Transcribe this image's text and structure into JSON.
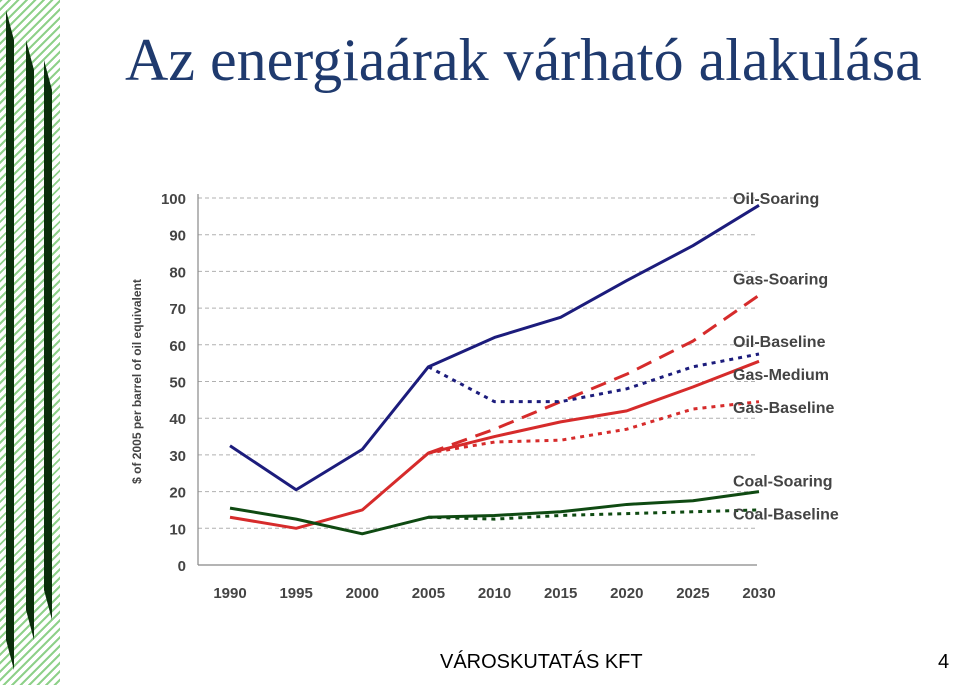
{
  "slide": {
    "title": "Az energiaárak várható alakulása",
    "footer": "VÁROSKUTATÁS KFT",
    "page_number": "4"
  },
  "colors": {
    "title": "#1f3a6e",
    "oil": "#1c1c7c",
    "gas": "#d62b2b",
    "coal": "#0f4a12",
    "grid": "#b0b0b0",
    "decoration_green": "#8fd18a",
    "decoration_dark": "#0b2d0b"
  },
  "chart_data": {
    "type": "line",
    "title": "",
    "xlabel": "",
    "ylabel": "$ of 2005 per barrel of oil equivalent",
    "ylim": [
      0,
      100
    ],
    "yticks": [
      0,
      10,
      20,
      30,
      40,
      50,
      60,
      70,
      80,
      90,
      100
    ],
    "categories": [
      "1990",
      "1995",
      "2000",
      "2005",
      "2010",
      "2015",
      "2020",
      "2025",
      "2030"
    ],
    "grid": "horizontal dashed",
    "legend": "labels at right end of each line",
    "series": [
      {
        "name": "Oil-Soaring",
        "color": "oil",
        "dash": "solid",
        "x": [
          "1990",
          "1995",
          "2000",
          "2005",
          "2010",
          "2015",
          "2020",
          "2025",
          "2030"
        ],
        "values": [
          32.5,
          20.5,
          31.5,
          54,
          62,
          67.5,
          77.5,
          87,
          98
        ]
      },
      {
        "name": "Gas-Soaring",
        "color": "gas",
        "dash": "long",
        "x": [
          "2005",
          "2010",
          "2015",
          "2020",
          "2025",
          "2030"
        ],
        "values": [
          30.5,
          37,
          44.5,
          52,
          61,
          73.5
        ]
      },
      {
        "name": "Oil-Baseline",
        "color": "oil",
        "dash": "short",
        "x": [
          "2005",
          "2010",
          "2015",
          "2020",
          "2025",
          "2030"
        ],
        "values": [
          54,
          44.5,
          44.5,
          48,
          54,
          57.5
        ]
      },
      {
        "name": "Gas-Medium",
        "color": "gas",
        "dash": "solid",
        "x": [
          "1990",
          "1995",
          "2000",
          "2005",
          "2010",
          "2015",
          "2020",
          "2025",
          "2030"
        ],
        "values": [
          13,
          10,
          15,
          30.5,
          35,
          39,
          42,
          48.5,
          55.5
        ]
      },
      {
        "name": "Gas-Baseline",
        "color": "gas",
        "dash": "short",
        "x": [
          "2005",
          "2010",
          "2015",
          "2020",
          "2025",
          "2030"
        ],
        "values": [
          30.5,
          33.5,
          34,
          37,
          42.5,
          44.5
        ]
      },
      {
        "name": "Coal-Soaring",
        "color": "coal",
        "dash": "solid",
        "x": [
          "1990",
          "1995",
          "2000",
          "2005",
          "2010",
          "2015",
          "2020",
          "2025",
          "2030"
        ],
        "values": [
          15.5,
          12.5,
          8.5,
          13,
          13.5,
          14.5,
          16.5,
          17.5,
          20
        ]
      },
      {
        "name": "Coal-Baseline",
        "color": "coal",
        "dash": "short",
        "x": [
          "2005",
          "2010",
          "2015",
          "2020",
          "2025",
          "2030"
        ],
        "values": [
          13,
          12.5,
          13.5,
          14,
          14.5,
          15
        ]
      }
    ]
  }
}
